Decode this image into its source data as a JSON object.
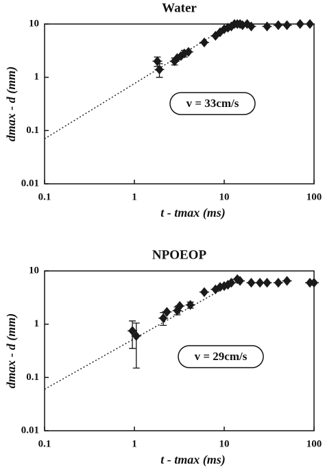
{
  "chart_data": [
    {
      "type": "scatter",
      "title": "Water",
      "xlabel": "t - tmax (ms)",
      "ylabel": "dmax - d (mm)",
      "annotation": "v = 33cm/s",
      "log_x": true,
      "log_y": true,
      "color": "#1a1a1a",
      "xlim": [
        0.1,
        100
      ],
      "ylim": [
        0.01,
        10
      ],
      "xticks": [
        0.1,
        1,
        10,
        100
      ],
      "yticks": [
        0.01,
        0.1,
        1,
        10
      ],
      "x": [
        1.8,
        1.9,
        2.8,
        3.0,
        3.3,
        3.6,
        4.0,
        6,
        8,
        9,
        10,
        11,
        12,
        13,
        14,
        15,
        16,
        18,
        20,
        30,
        40,
        50,
        70,
        90
      ],
      "values": [
        2.0,
        1.4,
        2.0,
        2.3,
        2.5,
        2.8,
        3.0,
        4.5,
        6,
        7,
        8,
        8.5,
        9,
        10,
        10,
        10,
        9.5,
        10,
        9,
        9,
        9.5,
        9.5,
        10,
        10
      ],
      "yerr": [
        0.4,
        0.4,
        0.3,
        null,
        null,
        0.4,
        null,
        null,
        null,
        null,
        null,
        null,
        null,
        null,
        null,
        null,
        null,
        null,
        null,
        null,
        null,
        null,
        null,
        null
      ],
      "fit": {
        "x": [
          0.1,
          12
        ],
        "values": [
          0.07,
          10
        ]
      }
    },
    {
      "type": "scatter",
      "title": "NPOEOP",
      "xlabel": "t - tmax (ms)",
      "ylabel": "dmax - d (mm)",
      "annotation": "v = 29cm/s",
      "log_x": true,
      "log_y": true,
      "color": "#1a1a1a",
      "xlim": [
        0.1,
        100
      ],
      "ylim": [
        0.01,
        10
      ],
      "xticks": [
        0.1,
        1,
        10,
        100
      ],
      "yticks": [
        0.01,
        0.1,
        1,
        10
      ],
      "x": [
        0.95,
        1.05,
        2.1,
        2.3,
        3.0,
        3.2,
        4.2,
        6,
        8,
        9,
        10,
        11,
        12,
        14,
        15,
        20,
        25,
        30,
        40,
        50,
        90,
        100
      ],
      "values": [
        0.75,
        0.6,
        1.3,
        1.7,
        1.8,
        2.2,
        2.3,
        4,
        4.5,
        5,
        5.2,
        5.5,
        6,
        7,
        6.5,
        6,
        6,
        6,
        6,
        6.5,
        6,
        6
      ],
      "yerr": [
        0.4,
        0.45,
        0.35,
        null,
        0.3,
        null,
        0.3,
        null,
        null,
        null,
        null,
        null,
        null,
        null,
        null,
        null,
        null,
        null,
        null,
        null,
        null,
        null
      ],
      "fit": {
        "x": [
          0.1,
          15
        ],
        "values": [
          0.06,
          7
        ]
      }
    }
  ]
}
